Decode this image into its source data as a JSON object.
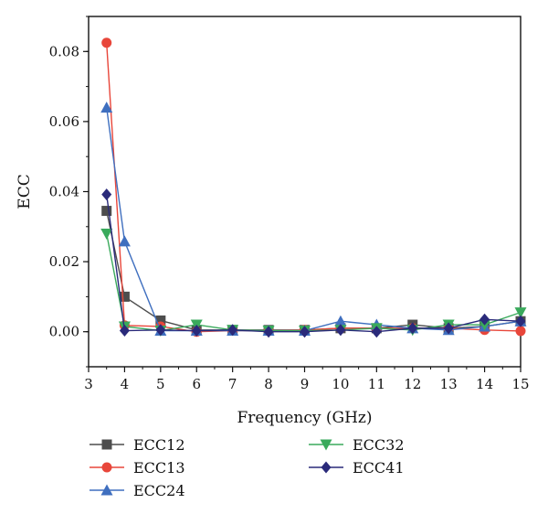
{
  "chart_data": {
    "type": "line",
    "xlabel": "Frequency (GHz)",
    "ylabel": "ECC",
    "xlim": [
      3,
      15
    ],
    "ylim": [
      -0.01,
      0.09
    ],
    "xticks": [
      3,
      4,
      5,
      6,
      7,
      8,
      9,
      10,
      11,
      12,
      13,
      14,
      15
    ],
    "yticks": [
      0.0,
      0.02,
      0.04,
      0.06,
      0.08
    ],
    "ytick_labels": [
      "0.00",
      "0.02",
      "0.04",
      "0.06",
      "0.08"
    ],
    "grid": false,
    "legend_position": "bottom",
    "series": [
      {
        "name": "ECC12",
        "color": "#4d4d4d",
        "marker": "square",
        "x": [
          3.5,
          4,
          5,
          6,
          7,
          8,
          9,
          10,
          11,
          12,
          13,
          14,
          15
        ],
        "y": [
          0.0345,
          0.01,
          0.0032,
          0.0005,
          0.0005,
          0.0005,
          0.0005,
          0.001,
          0.001,
          0.002,
          0.001,
          0.0015,
          0.003
        ]
      },
      {
        "name": "ECC13",
        "color": "#e8463a",
        "marker": "circle",
        "x": [
          3.5,
          4,
          5,
          6,
          7,
          8,
          9,
          10,
          11,
          12,
          13,
          14,
          15
        ],
        "y": [
          0.0825,
          0.0018,
          0.0015,
          0.0,
          0.0003,
          0.0003,
          0.0005,
          0.001,
          0.001,
          0.001,
          0.001,
          0.0005,
          0.0002
        ]
      },
      {
        "name": "ECC24",
        "color": "#3f6fbf",
        "marker": "triangle-up",
        "x": [
          3.5,
          4,
          5,
          6,
          7,
          8,
          9,
          10,
          11,
          12,
          13,
          14,
          15
        ],
        "y": [
          0.064,
          0.0258,
          0.0003,
          0.0003,
          0.0003,
          0.0003,
          0.0003,
          0.003,
          0.002,
          0.001,
          0.0005,
          0.0015,
          0.003
        ]
      },
      {
        "name": "ECC32",
        "color": "#3aaa5c",
        "marker": "triangle-down",
        "x": [
          3.5,
          4,
          5,
          6,
          7,
          8,
          9,
          10,
          11,
          12,
          13,
          14,
          15
        ],
        "y": [
          0.028,
          0.0015,
          0.0003,
          0.002,
          0.0005,
          0.0003,
          0.0003,
          0.0005,
          0.001,
          0.0005,
          0.002,
          0.002,
          0.0055
        ]
      },
      {
        "name": "ECC41",
        "color": "#2a2a7a",
        "marker": "diamond",
        "x": [
          3.5,
          4,
          5,
          6,
          7,
          8,
          9,
          10,
          11,
          12,
          13,
          14,
          15
        ],
        "y": [
          0.0392,
          0.0003,
          0.0005,
          0.0003,
          0.0005,
          0.0,
          0.0,
          0.0005,
          0.0,
          0.001,
          0.001,
          0.0035,
          0.003
        ]
      }
    ]
  }
}
